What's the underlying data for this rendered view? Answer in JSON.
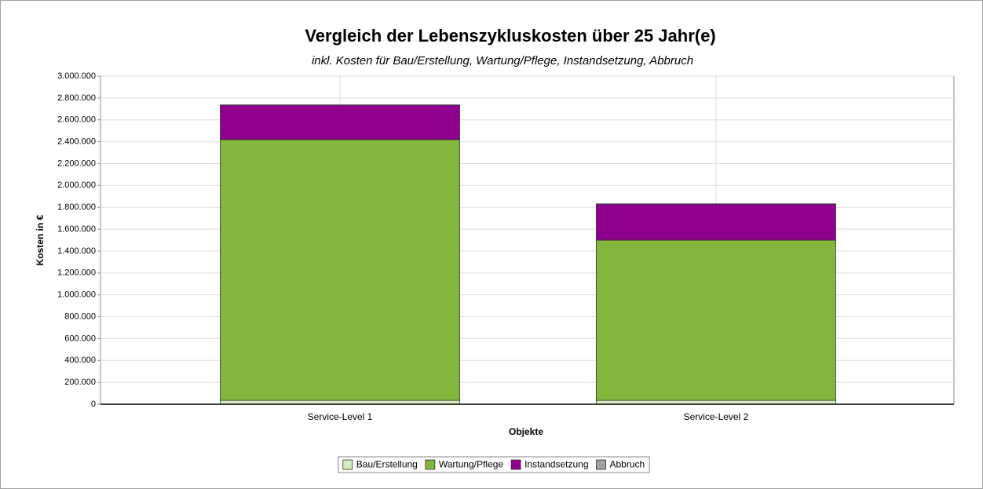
{
  "chart_data": {
    "type": "stacked_bar",
    "title": "Vergleich der Lebenszykluskosten über 25 Jahr(e)",
    "subtitle": "inkl. Kosten für Bau/Erstellung, Wartung/Pflege, Instandsetzung, Abbruch",
    "x_label": "Objekte",
    "y_label": "Kosten in €",
    "categories": [
      "Service-Level 1",
      "Service-Level 2"
    ],
    "series": [
      {
        "name": "Bau/Erstellung",
        "color": "#d6ebbd",
        "values": [
          35000,
          35000
        ]
      },
      {
        "name": "Wartung/Pflege",
        "color": "#84b53c",
        "values": [
          2385000,
          1465000
        ]
      },
      {
        "name": "Instandsetzung",
        "color": "#8f008f",
        "values": [
          315000,
          330000
        ]
      },
      {
        "name": "Abbruch",
        "color": "#a0a0a0",
        "values": [
          2000,
          2000
        ]
      }
    ],
    "ylim": [
      0,
      3000000
    ],
    "yticks": [
      0,
      {
        "value": 200000,
        "label": "200.000"
      },
      {
        "value": 400000,
        "label": "400.000"
      },
      {
        "value": 600000,
        "label": "600.000"
      },
      {
        "value": 800000,
        "label": "800.000"
      },
      {
        "value": 1000000,
        "label": "1.000.000"
      },
      {
        "value": 1200000,
        "label": "1.200.000"
      },
      {
        "value": 1400000,
        "label": "1.400.000"
      },
      {
        "value": 1600000,
        "label": "1.600.000"
      },
      {
        "value": 1800000,
        "label": "1.800.000"
      },
      {
        "value": 2000000,
        "label": "2.000.000"
      },
      {
        "value": 2200000,
        "label": "2.200.000"
      },
      {
        "value": 2400000,
        "label": "2.400.000"
      },
      {
        "value": 2600000,
        "label": "2.600.000"
      },
      {
        "value": 2800000,
        "label": "2.800.000"
      },
      {
        "value": 3000000,
        "label": "3.000.000"
      }
    ],
    "grid": true,
    "legend": "bottom"
  }
}
